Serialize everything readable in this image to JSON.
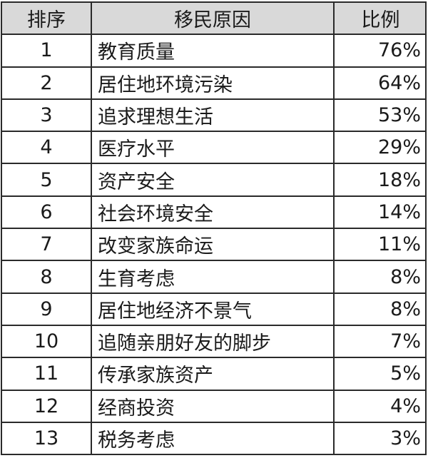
{
  "headers": {
    "rank": "排序",
    "reason": "移民原因",
    "ratio": "比例"
  },
  "rows": [
    {
      "rank": "1",
      "reason": "教育质量",
      "ratio": "76%"
    },
    {
      "rank": "2",
      "reason": "居住地环境污染",
      "ratio": "64%"
    },
    {
      "rank": "3",
      "reason": "追求理想生活",
      "ratio": "53%"
    },
    {
      "rank": "4",
      "reason": "医疗水平",
      "ratio": "29%"
    },
    {
      "rank": "5",
      "reason": "资产安全",
      "ratio": "18%"
    },
    {
      "rank": "6",
      "reason": "社会环境安全",
      "ratio": "14%"
    },
    {
      "rank": "7",
      "reason": "改变家族命运",
      "ratio": "11%"
    },
    {
      "rank": "8",
      "reason": "生育考虑",
      "ratio": "8%"
    },
    {
      "rank": "9",
      "reason": "居住地经济不景气",
      "ratio": "8%"
    },
    {
      "rank": "10",
      "reason": "追随亲朋好友的脚步",
      "ratio": "7%"
    },
    {
      "rank": "11",
      "reason": "传承家族资产",
      "ratio": "5%"
    },
    {
      "rank": "12",
      "reason": "经商投资",
      "ratio": "4%"
    },
    {
      "rank": "13",
      "reason": "税务考虑",
      "ratio": "3%"
    }
  ],
  "colors": {
    "header_bg": "#d9d9d9",
    "border": "#2a2a2a"
  }
}
